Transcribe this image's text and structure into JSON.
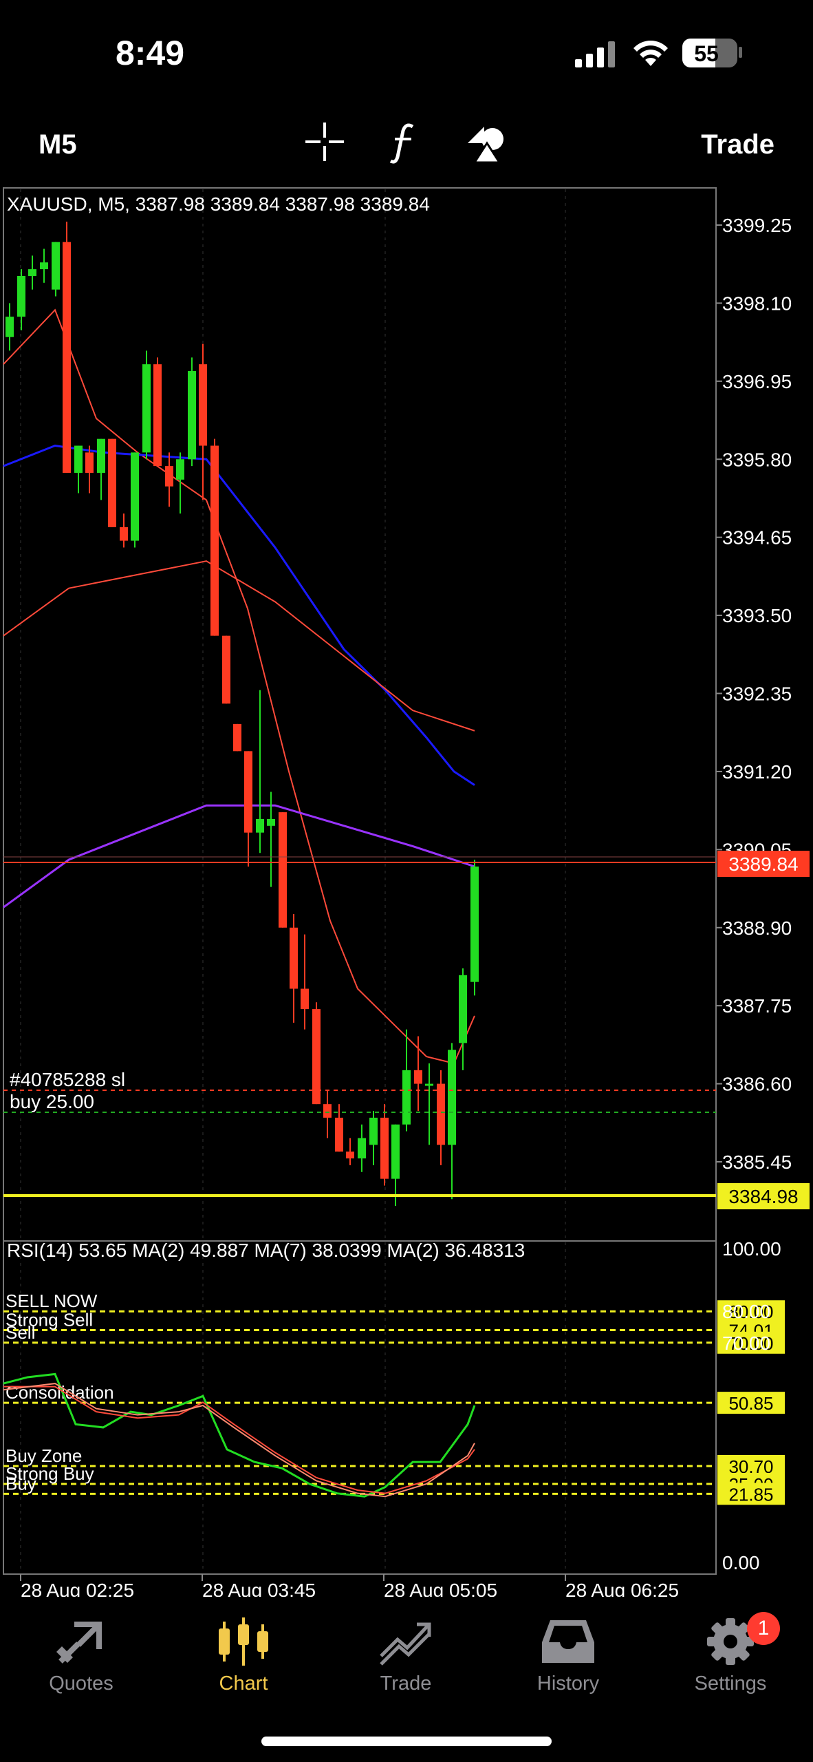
{
  "status": {
    "time": "8:49",
    "battery": "55"
  },
  "toolbar": {
    "timeframe": "M5",
    "trade_label": "Trade"
  },
  "chart": {
    "header": "XAUUSD, M5, 3387.98 3389.84 3387.98 3389.84",
    "price_ticks": [
      "3399.25",
      "3398.10",
      "3396.95",
      "3395.80",
      "3394.65",
      "3393.50",
      "3392.35",
      "3391.20",
      "3390.05",
      "3388.90",
      "3387.75",
      "3386.60",
      "3385.45"
    ],
    "current_price": "3389.84",
    "level_price": "3384.98",
    "order_line1": "#40785288 sl",
    "order_line2": "buy 25.00",
    "time_ticks": [
      "28 Aug 02:25",
      "28 Aug 03:45",
      "28 Aug 05:05",
      "28 Aug 06:25"
    ],
    "colors": {
      "bull": "#22dd22",
      "bear": "#ff3b22",
      "ma_blue": "#1a1aff",
      "ma_red": "#ff4a3a",
      "ma_purple": "#9933ff",
      "level": "#f0f020"
    }
  },
  "rsi": {
    "header": "RSI(14) 53.65 MA(2) 49.887 MA(7) 38.0399 MA(2) 36.48313",
    "ticks": [
      "100.00",
      "80.00",
      "70.00",
      "0.00"
    ],
    "levels": [
      {
        "label": "SELL NOW",
        "value": "80.00"
      },
      {
        "label": "Strong Sell",
        "value": "74.01"
      },
      {
        "label": "Sell",
        "value": "70.00"
      },
      {
        "label": "Consolidation",
        "value": "50.85"
      },
      {
        "label": "Buy Zone",
        "value": "30.70"
      },
      {
        "label": "Strong Buy",
        "value": "25.00"
      },
      {
        "label": "Buy",
        "value": "21.85"
      }
    ]
  },
  "tabs": [
    {
      "label": "Quotes",
      "icon": "quotes-icon"
    },
    {
      "label": "Chart",
      "icon": "candles-icon"
    },
    {
      "label": "Trade",
      "icon": "trade-icon"
    },
    {
      "label": "History",
      "icon": "inbox-icon"
    },
    {
      "label": "Settings",
      "icon": "gear-icon"
    }
  ],
  "settings_badge": "1"
}
